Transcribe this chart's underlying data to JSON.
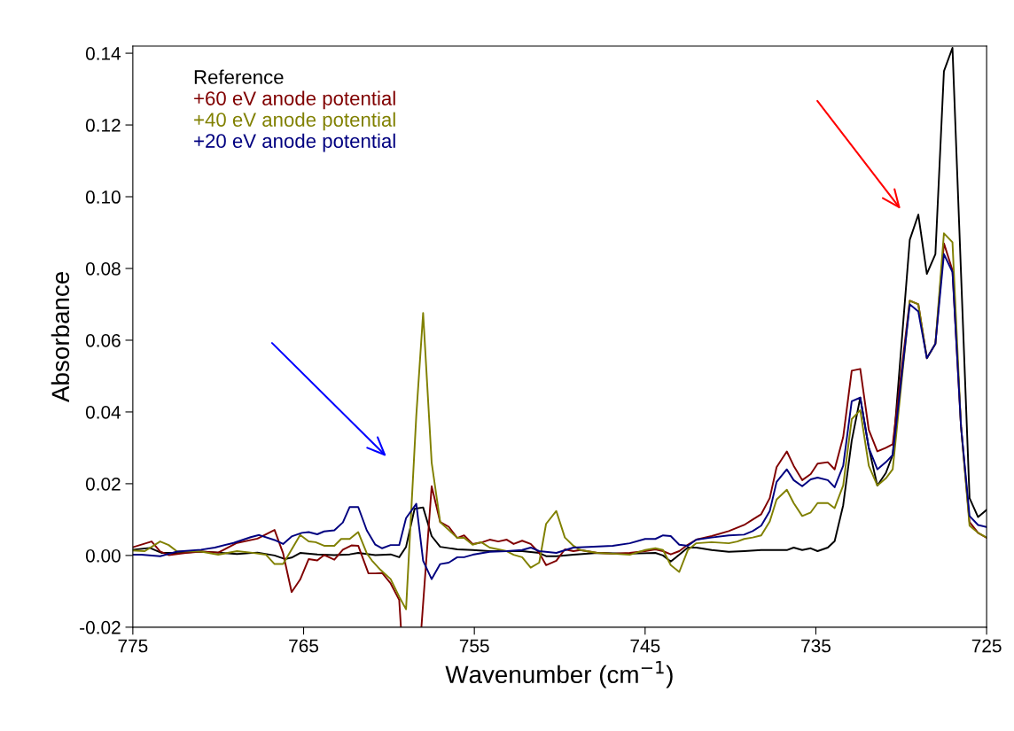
{
  "chart_data": {
    "type": "line",
    "xlabel": "Wavenumber (cm$^{−1}$)",
    "ylabel": "Absorbance",
    "xlim": [
      775,
      725
    ],
    "xticks": [
      775,
      765,
      755,
      745,
      735,
      725
    ],
    "ylim": [
      -0.02,
      0.142
    ],
    "yticks": [
      {
        "value": -0.02,
        "label": "-0.02"
      },
      {
        "value": 0,
        "label": "0.00"
      },
      {
        "value": 0.02,
        "label": "0.02"
      },
      {
        "value": 0.04,
        "label": "0.04"
      },
      {
        "value": 0.06,
        "label": "0.06"
      },
      {
        "value": 0.08,
        "label": "0.08"
      },
      {
        "value": 0.1,
        "label": "0.10"
      },
      {
        "value": 0.12,
        "label": "0.12"
      },
      {
        "value": 0.14,
        "label": "0.14"
      }
    ],
    "grid": false,
    "legend": "top left",
    "marker": "none",
    "line_style": "solid",
    "series": [
      {
        "name": "Reference",
        "color": "#000000",
        "x": [
          775,
          774.0,
          773.3,
          772.4,
          771.0,
          770.0,
          768.9,
          767.7,
          766.7,
          766.1,
          765.7,
          765.2,
          764.2,
          763.2,
          762.3,
          761.8,
          760.8,
          759.9,
          759.4,
          759.0,
          758.5,
          758.0,
          757.5,
          757.0,
          756.0,
          755.1,
          754.1,
          752.2,
          751.2,
          750.8,
          750.2,
          749.2,
          747.8,
          745.9,
          744.4,
          743.95,
          743.5,
          743.0,
          742.5,
          742.0,
          741.1,
          740.1,
          739.2,
          738.2,
          736.7,
          736.3,
          735.8,
          735.3,
          734.9,
          734.3,
          733.9,
          733.4,
          732.9,
          732.4,
          731.9,
          731.4,
          730.9,
          730.5,
          729.5,
          729.0,
          728.5,
          728.0,
          727.5,
          727.0,
          726.0,
          725.5,
          725.0
        ],
        "values": [
          0.0016,
          0.0021,
          0.0007,
          0.0007,
          0.0011,
          0.0008,
          0.0004,
          0.0008,
          0.0,
          -0.001,
          -0.0006,
          0.0007,
          0.0003,
          0.0001,
          0.0003,
          0.0007,
          0.0001,
          0.0003,
          -0.0005,
          0.0024,
          0.013,
          0.0134,
          0.0054,
          0.0024,
          0.0017,
          0.0015,
          0.0012,
          0.0012,
          0.0007,
          -0.0002,
          -0.0002,
          0.0002,
          0.0007,
          0.0005,
          0.0007,
          0.0,
          -0.0017,
          0.0002,
          0.0022,
          0.0022,
          0.0015,
          0.001,
          0.0012,
          0.0015,
          0.0015,
          0.0022,
          0.0015,
          0.002,
          0.0012,
          0.0022,
          0.004,
          0.014,
          0.032,
          0.044,
          0.03,
          0.0195,
          0.023,
          0.028,
          0.088,
          0.095,
          0.0785,
          0.084,
          0.135,
          0.1415,
          0.016,
          0.0107,
          0.0127
        ]
      },
      {
        "name": "+60 eV anode potential",
        "color": "#800000",
        "x": [
          775,
          773.9,
          773.4,
          772.9,
          771.9,
          771.0,
          770.0,
          768.9,
          767.7,
          766.7,
          766.2,
          765.7,
          765.2,
          764.7,
          764.2,
          763.8,
          763.2,
          762.7,
          762.2,
          761.8,
          761.2,
          760.8,
          760.4,
          759.9,
          759.4,
          759.3,
          758.6,
          758.1,
          757.5,
          757.0,
          756.5,
          756.0,
          755.6,
          755.1,
          754.6,
          754.1,
          753.6,
          753.1,
          752.7,
          752.2,
          751.7,
          751.2,
          750.8,
          750.2,
          749.7,
          749.2,
          748.8,
          747.8,
          746.9,
          745.9,
          745.0,
          744.4,
          743.95,
          743.5,
          743.0,
          742.5,
          742.0,
          741.1,
          740.1,
          739.2,
          738.7,
          738.2,
          737.7,
          737.3,
          736.7,
          736.3,
          735.8,
          735.3,
          734.9,
          734.3,
          733.9,
          733.4,
          732.9,
          732.4,
          731.9,
          731.4,
          730.9,
          730.5,
          729.5,
          729.0,
          728.5,
          728.0,
          727.5,
          727.0,
          726.5,
          726.0,
          725.5,
          725.0
        ],
        "values": [
          0.0023,
          0.0039,
          0.0011,
          0.0001,
          0.0007,
          0.0011,
          0.0008,
          0.0035,
          0.0047,
          0.0071,
          0.0006,
          -0.0102,
          -0.0067,
          -0.001,
          -0.0014,
          0.0001,
          -0.0012,
          0.0016,
          0.0028,
          0.0027,
          -0.005,
          -0.005,
          -0.0049,
          -0.0078,
          -0.0124,
          -0.02,
          null,
          -0.02,
          0.0193,
          0.0093,
          0.008,
          0.0049,
          0.0056,
          0.0032,
          0.0036,
          0.0044,
          0.0039,
          0.0044,
          0.0032,
          0.0041,
          0.0032,
          0.0007,
          -0.0027,
          -0.0015,
          0.0017,
          0.0012,
          0.0015,
          0.0007,
          0.0005,
          0.0007,
          0.0012,
          0.0017,
          0.0012,
          0.0003,
          0.0012,
          0.003,
          0.0044,
          0.0054,
          0.0068,
          0.0085,
          0.01,
          0.0115,
          0.016,
          0.0246,
          0.029,
          0.025,
          0.021,
          0.0227,
          0.0256,
          0.026,
          0.024,
          0.033,
          0.0515,
          0.052,
          0.035,
          0.029,
          0.03,
          0.031,
          0.071,
          0.07,
          0.055,
          0.059,
          0.087,
          0.0795,
          0.036,
          0.0093,
          0.0063,
          0.0049
        ]
      },
      {
        "name": "+40 eV anode potential",
        "color": "#808000",
        "x": [
          775,
          774.3,
          773.4,
          772.9,
          772.4,
          771.9,
          771.0,
          770.0,
          768.9,
          768.1,
          767.2,
          766.7,
          766.2,
          765.2,
          764.7,
          764.3,
          763.8,
          763.2,
          762.8,
          762.3,
          761.8,
          761.3,
          761.0,
          760.5,
          759.9,
          759.4,
          759.0,
          758.4,
          758.0,
          757.5,
          757.0,
          756.5,
          756.0,
          755.6,
          755.1,
          754.6,
          754.1,
          753.6,
          753.1,
          752.7,
          752.2,
          751.7,
          751.2,
          750.8,
          750.2,
          749.7,
          749.2,
          748.8,
          747.8,
          746.9,
          745.9,
          745.0,
          744.4,
          743.95,
          743.5,
          743.0,
          742.5,
          742.0,
          741.1,
          740.1,
          739.6,
          739.2,
          738.7,
          738.2,
          737.7,
          737.3,
          736.7,
          736.3,
          735.8,
          735.3,
          734.9,
          734.3,
          733.9,
          733.4,
          732.9,
          732.4,
          731.9,
          731.4,
          730.9,
          730.5,
          729.5,
          729.0,
          728.5,
          728.0,
          727.5,
          727.0,
          726.5,
          726.0,
          725.5,
          725.0
        ],
        "values": [
          0.0014,
          0.0012,
          0.0039,
          0.0029,
          0.0011,
          0.0012,
          0.0011,
          0.0002,
          0.0012,
          0.0008,
          0.0002,
          -0.0024,
          -0.0024,
          0.0057,
          0.0039,
          0.0037,
          0.0027,
          0.0027,
          0.0046,
          0.0046,
          0.0065,
          0.0006,
          -0.0014,
          -0.004,
          -0.0066,
          -0.0115,
          -0.015,
          0.039,
          0.0676,
          0.0259,
          0.0093,
          0.0071,
          0.0049,
          0.0049,
          0.003,
          0.0037,
          0.0022,
          0.0017,
          0.0012,
          0.0002,
          -0.0005,
          -0.0034,
          -0.002,
          0.0088,
          0.0124,
          0.005,
          0.0027,
          0.0015,
          0.0007,
          0.0005,
          0.0002,
          0.0015,
          0.002,
          0.0015,
          -0.0027,
          -0.0046,
          0.0015,
          0.0034,
          0.0037,
          0.0034,
          0.0039,
          0.0046,
          0.005,
          0.0056,
          0.0095,
          0.0156,
          0.0183,
          0.0146,
          0.011,
          0.012,
          0.0146,
          0.0146,
          0.0132,
          0.0195,
          0.038,
          0.0405,
          0.025,
          0.0195,
          0.0215,
          0.024,
          0.071,
          0.07,
          0.055,
          0.059,
          0.0898,
          0.0873,
          0.036,
          0.0083,
          0.0063,
          0.005
        ]
      },
      {
        "name": "+20 eV anode potential",
        "color": "#000080",
        "x": [
          775,
          774.5,
          773.4,
          772.4,
          771.0,
          770.2,
          769.1,
          768.1,
          767.6,
          766.7,
          766.2,
          765.7,
          765.1,
          764.7,
          764.2,
          763.8,
          763.2,
          762.7,
          762.3,
          761.8,
          761.3,
          760.8,
          760.4,
          759.9,
          759.4,
          759.0,
          758.4,
          758.0,
          757.5,
          757.0,
          756.5,
          756.0,
          755.6,
          755.1,
          754.1,
          753.1,
          752.2,
          751.7,
          751.2,
          750.2,
          749.2,
          748.3,
          746.9,
          745.9,
          745.0,
          744.4,
          743.95,
          743.5,
          743.0,
          742.5,
          742.0,
          741.1,
          740.1,
          739.2,
          738.7,
          738.2,
          737.7,
          737.3,
          736.7,
          736.3,
          735.8,
          735.3,
          734.9,
          734.3,
          733.9,
          733.4,
          732.9,
          732.4,
          731.9,
          731.4,
          730.9,
          730.5,
          729.5,
          729.0,
          728.5,
          728.0,
          727.5,
          727.0,
          726.5,
          726.0,
          725.5,
          725.0
        ],
        "values": [
          0.0002,
          0.0002,
          -0.0002,
          0.0011,
          0.0016,
          0.0022,
          0.0035,
          0.0051,
          0.0057,
          0.0043,
          0.0032,
          0.0053,
          0.0063,
          0.0065,
          0.0059,
          0.0067,
          0.007,
          0.0092,
          0.0135,
          0.0135,
          0.007,
          0.003,
          0.002,
          0.0029,
          0.0029,
          0.0104,
          0.0144,
          -0.0015,
          -0.0066,
          -0.0024,
          -0.002,
          -0.0005,
          -0.0005,
          0.0002,
          0.001,
          0.0012,
          0.0015,
          0.0022,
          0.0012,
          0.0007,
          0.0022,
          0.0024,
          0.0027,
          0.0034,
          0.0046,
          0.0046,
          0.0056,
          0.0054,
          0.003,
          0.0027,
          0.0044,
          0.005,
          0.0056,
          0.0058,
          0.0068,
          0.0083,
          0.0124,
          0.0205,
          0.024,
          0.021,
          0.0193,
          0.0212,
          0.0217,
          0.021,
          0.019,
          0.025,
          0.043,
          0.044,
          0.03,
          0.024,
          0.026,
          0.028,
          0.07,
          0.068,
          0.055,
          0.059,
          0.084,
          0.079,
          0.036,
          0.011,
          0.0085,
          0.0079
        ]
      }
    ]
  }
}
